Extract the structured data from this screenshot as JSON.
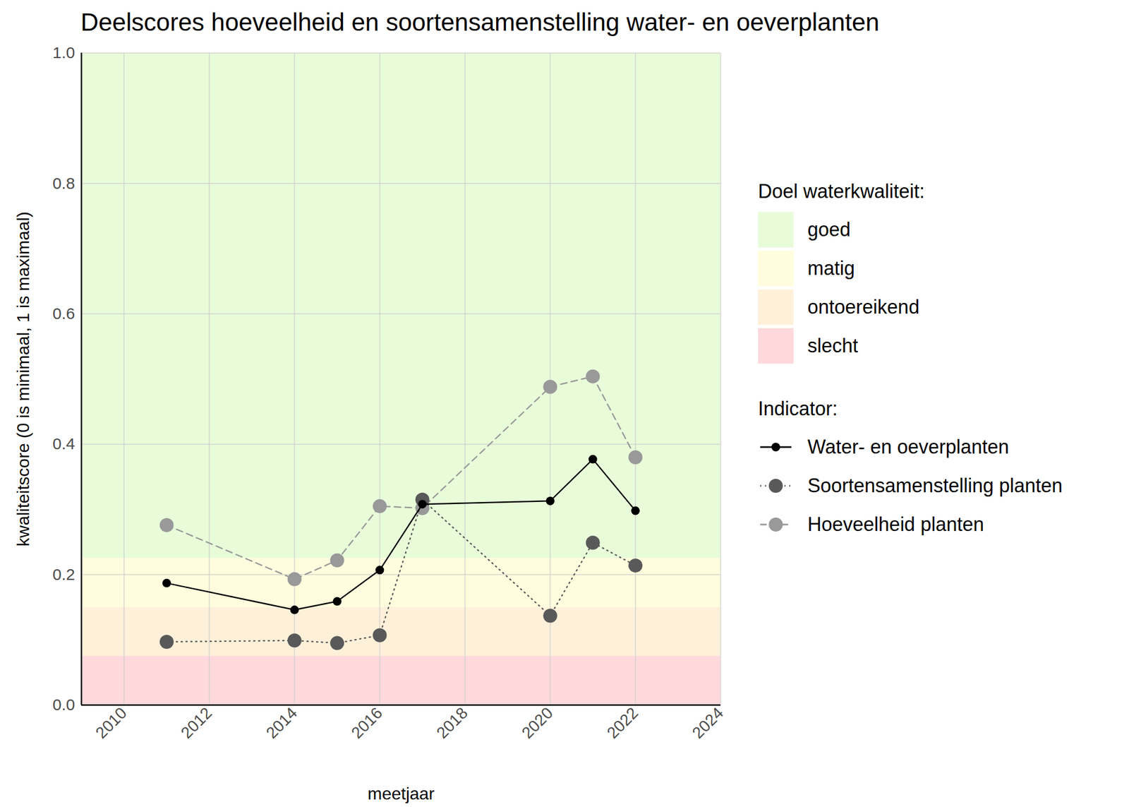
{
  "chart_data": {
    "type": "line",
    "title": "Deelscores hoeveelheid en soortensamenstelling water- en oeverplanten",
    "x_label": "meetjaar",
    "y_label": "kwaliteitscore (0 is minimaal, 1 is maximaal)",
    "x": [
      2011,
      2014,
      2015,
      2016,
      2017,
      2020,
      2021,
      2022
    ],
    "xlim": [
      2009,
      2024
    ],
    "xticks": [
      2010,
      2012,
      2014,
      2016,
      2018,
      2020,
      2022,
      2024
    ],
    "ylim": [
      0,
      1
    ],
    "yticks": [
      {
        "value": 0,
        "label": "0.0"
      },
      {
        "value": 0.2,
        "label": "0.2"
      },
      {
        "value": 0.4,
        "label": "0.4"
      },
      {
        "value": 0.6,
        "label": "0.6"
      },
      {
        "value": 0.8,
        "label": "0.8"
      },
      {
        "value": 1,
        "label": "1.0"
      }
    ],
    "grid": true,
    "legend": "right",
    "bands_title": "Doel waterkwaliteit:",
    "bands": [
      {
        "name": "goed",
        "color": "#e8fcd9",
        "from": 0.225,
        "to": 1
      },
      {
        "name": "matig",
        "color": "#fffddd",
        "from": 0.15,
        "to": 0.225
      },
      {
        "name": "ontoereikend",
        "color": "#fff0d9",
        "from": 0.075,
        "to": 0.15
      },
      {
        "name": "slecht",
        "color": "#ffd9dc",
        "from": 0,
        "to": 0.075
      }
    ],
    "legend_title": "Indicator:",
    "series": [
      {
        "name": "Water- en oeverplanten",
        "color": "#000000",
        "marker": "small_circle",
        "line_style": "solid",
        "values": [
          0.187,
          0.146,
          0.159,
          0.207,
          0.308,
          0.313,
          0.377,
          0.298
        ]
      },
      {
        "name": "Soortensamenstelling planten",
        "color": "#595959",
        "marker": "circle",
        "line_style": "dotted",
        "values": [
          0.097,
          0.099,
          0.095,
          0.107,
          0.315,
          0.137,
          0.249,
          0.214
        ]
      },
      {
        "name": "Hoeveelheid planten",
        "color": "#999999",
        "marker": "circle",
        "line_style": "dashed",
        "values": [
          0.276,
          0.193,
          0.222,
          0.305,
          0.302,
          0.488,
          0.504,
          0.38
        ]
      }
    ]
  }
}
